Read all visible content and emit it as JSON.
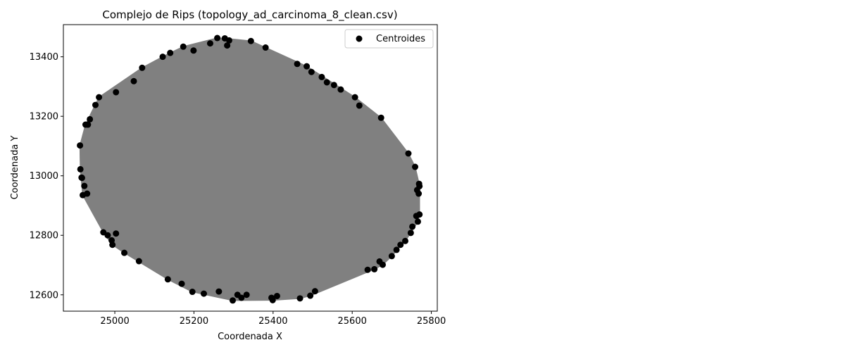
{
  "chart_data": {
    "type": "scatter",
    "title": "Complejo de Rips (topology_ad_carcinoma_8_clean.csv)",
    "xlabel": "Coordenada X",
    "ylabel": "Coordenada Y",
    "xlim": [
      24870,
      25815
    ],
    "ylim": [
      12545,
      13508
    ],
    "xticks": [
      25000,
      25200,
      25400,
      25600,
      25800
    ],
    "yticks": [
      12600,
      12800,
      13000,
      13200,
      13400
    ],
    "legend": {
      "location": "upper right",
      "entries": [
        "Centroides"
      ]
    },
    "grid": false,
    "edge_color": "#808080",
    "point_color": "#000000",
    "series": [
      {
        "name": "Centroides",
        "x": [
          24913,
          24917,
          24923,
          24930,
          24932,
          24937,
          24951,
          24960,
          24971,
          24982,
          24994,
          25003,
          25024,
          25048,
          25061,
          25069,
          25121,
          25134,
          25140,
          25169,
          25173,
          25196,
          25199,
          25225,
          25241,
          25259,
          25278,
          25289,
          25298,
          25310,
          25320,
          25333,
          25344,
          25381,
          25396,
          25399,
          25410,
          25461,
          25468,
          25485,
          25494,
          25497,
          25506,
          25523,
          25536,
          25554,
          25571,
          25607,
          25618,
          25639,
          25656,
          25669,
          25673,
          25677,
          25700,
          25712,
          25722,
          25734,
          25742,
          25748,
          25752,
          25759,
          25762,
          25764,
          25766,
          25768,
          25769,
          25770,
          25770,
          24912,
          24916,
          24919,
          24926,
          24992,
          25003,
          25263,
          25284
        ],
        "y": [
          13022,
          12993,
          12966,
          12940,
          13172,
          13190,
          13238,
          13264,
          12810,
          12800,
          12768,
          13281,
          12741,
          13318,
          12713,
          13363,
          13400,
          12652,
          13413,
          12637,
          13434,
          12610,
          13421,
          12604,
          13445,
          13463,
          13462,
          13455,
          12581,
          12600,
          12590,
          12600,
          13453,
          13431,
          12590,
          12582,
          12596,
          13376,
          12588,
          13368,
          12597,
          13349,
          12612,
          13332,
          13314,
          13305,
          13290,
          13264,
          13236,
          12684,
          12686,
          12712,
          13195,
          12701,
          12730,
          12751,
          12768,
          12781,
          13075,
          12808,
          12829,
          13030,
          12865,
          12952,
          12846,
          12940,
          12973,
          12965,
          12870,
          13102,
          12994,
          12935,
          13172,
          12783,
          12806,
          12611,
          13438
        ]
      }
    ]
  }
}
